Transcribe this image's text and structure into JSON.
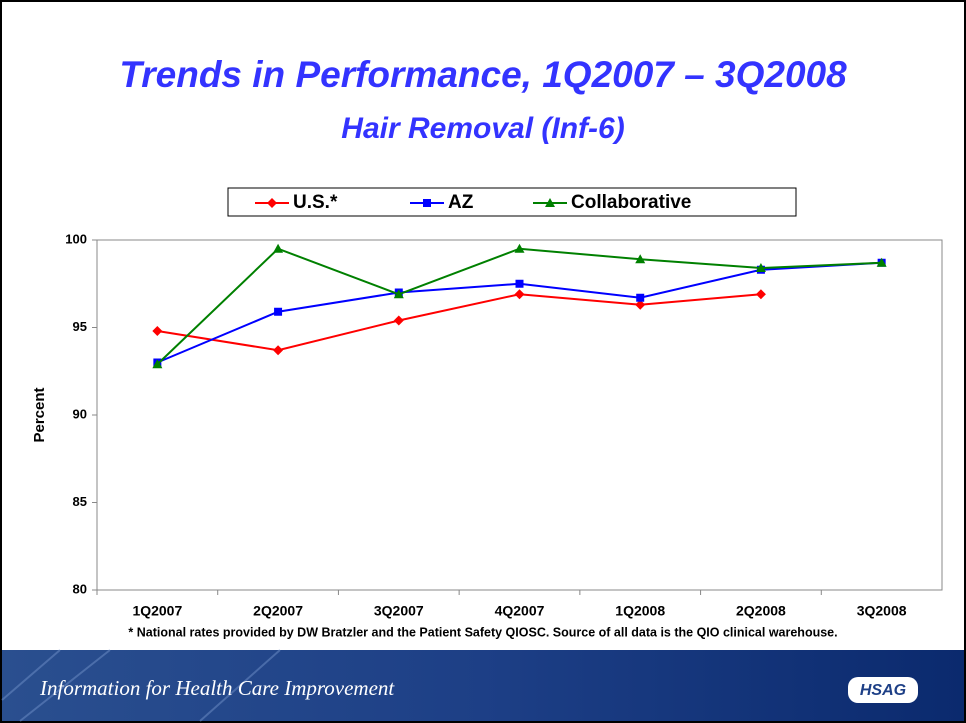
{
  "chart_data": {
    "type": "line",
    "title": "Trends in Performance, 1Q2007 – 3Q2008",
    "subtitle": "Hair Removal (Inf-6)",
    "y_label": "Percent",
    "categories": [
      "1Q2007",
      "2Q2007",
      "3Q2007",
      "4Q2007",
      "1Q2008",
      "2Q2008",
      "3Q2008"
    ],
    "series": [
      {
        "name": "U.S.*",
        "color": "#ff0000",
        "marker": "diamond",
        "values": [
          94.8,
          93.7,
          95.4,
          96.9,
          96.3,
          96.9,
          null
        ]
      },
      {
        "name": "AZ",
        "color": "#0000ff",
        "marker": "square",
        "values": [
          93.0,
          95.9,
          97.0,
          97.5,
          96.7,
          98.3,
          98.7
        ]
      },
      {
        "name": "Collaborative",
        "color": "#008000",
        "marker": "triangle",
        "values": [
          92.9,
          99.5,
          96.9,
          99.5,
          98.9,
          98.4,
          98.7
        ]
      }
    ],
    "ylim": [
      80,
      100
    ],
    "yticks": [
      80,
      85,
      90,
      95,
      100
    ],
    "grid": false,
    "legend": "top",
    "footnote": "* National rates provided by DW Bratzler and the Patient Safety QIOSC. Source of all data is the QIO clinical warehouse."
  },
  "footer": {
    "tagline": "Information for Health Care Improvement",
    "logo": "HSAG"
  }
}
